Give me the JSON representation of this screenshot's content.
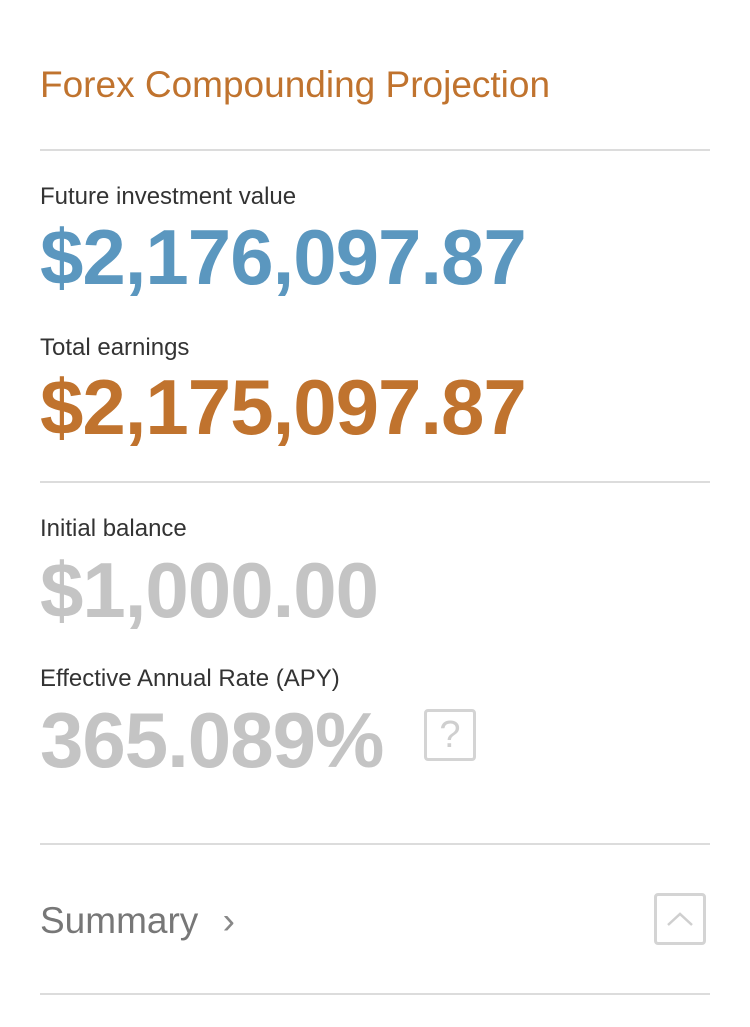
{
  "title": "Forex Compounding Projection",
  "future": {
    "label": "Future investment value",
    "value": "$2,176,097.87"
  },
  "earnings": {
    "label": "Total earnings",
    "value": "$2,175,097.87"
  },
  "initial": {
    "label": "Initial balance",
    "value": "$1,000.00"
  },
  "apy": {
    "label": "Effective Annual Rate (APY)",
    "value": "365.089%",
    "help_icon": "question-mark-box"
  },
  "summary": {
    "label": "Summary",
    "chevron": "›",
    "toggle_icon": "chevron-up-box"
  },
  "colors": {
    "accent": "#c0732e",
    "blue": "#5b97bf",
    "muted": "#c4c4c4"
  }
}
